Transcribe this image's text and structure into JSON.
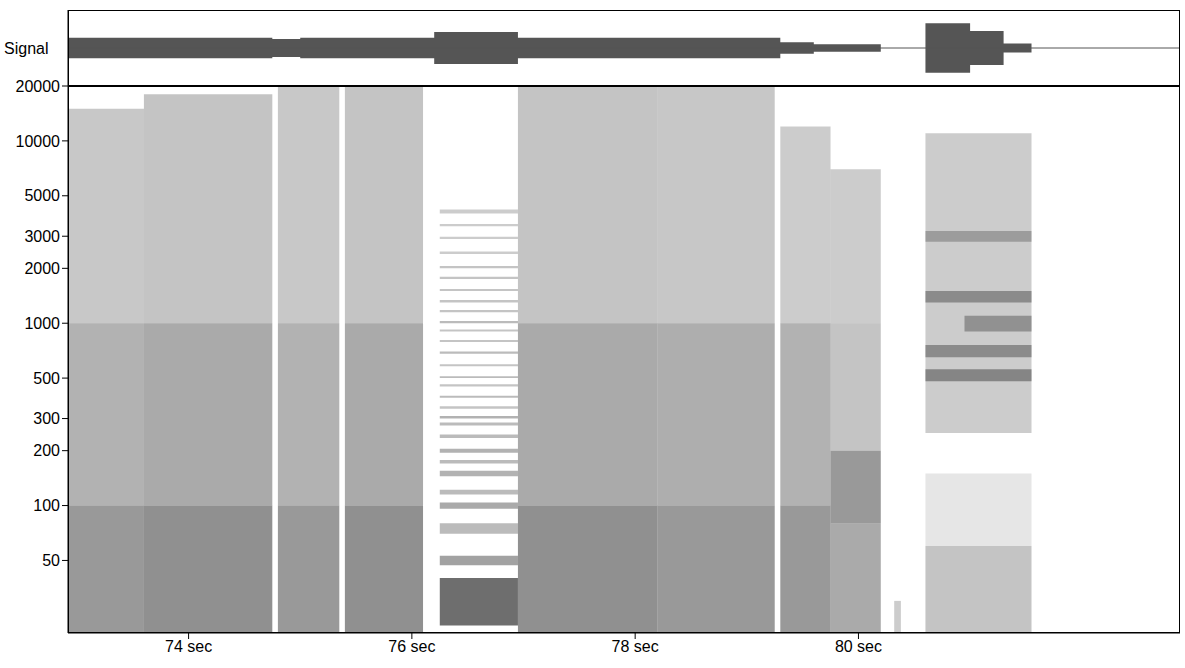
{
  "chart_data": {
    "type": "spectrogram",
    "signal": {
      "label": "Signal",
      "x": [
        72.92,
        74.75,
        75.0,
        76.2,
        76.95,
        79.3,
        79.6,
        80.2,
        80.6,
        81.0,
        81.3,
        81.55,
        82.88
      ],
      "amplitude": [
        0.27,
        0.24,
        0.27,
        0.42,
        0.27,
        0.15,
        0.1,
        0.0,
        0.65,
        0.45,
        0.12,
        0.0,
        0.0
      ],
      "ylim": [
        -1,
        1
      ],
      "color": "#555555"
    },
    "xlim": [
      72.92,
      82.88
    ],
    "xticks": [
      {
        "value": 74,
        "label": "74 sec"
      },
      {
        "value": 76,
        "label": "76 sec"
      },
      {
        "value": 78,
        "label": "78 sec"
      },
      {
        "value": 80,
        "label": "80 sec"
      }
    ],
    "ylim": [
      20,
      20000
    ],
    "yticks": [
      50,
      100,
      200,
      300,
      500,
      1000,
      2000,
      3000,
      5000,
      10000,
      20000
    ],
    "log": "y",
    "color": "#555555",
    "cells": [
      [
        72.92,
        73.6,
        20,
        100,
        0.6
      ],
      [
        72.92,
        73.6,
        100,
        1000,
        0.45
      ],
      [
        72.92,
        73.6,
        1000,
        15000,
        0.32
      ],
      [
        73.6,
        74.75,
        20,
        100,
        0.65
      ],
      [
        73.6,
        74.75,
        100,
        1000,
        0.5
      ],
      [
        73.6,
        74.75,
        1000,
        18000,
        0.35
      ],
      [
        74.8,
        75.35,
        20,
        100,
        0.6
      ],
      [
        74.8,
        75.35,
        100,
        1000,
        0.45
      ],
      [
        74.8,
        75.35,
        1000,
        20000,
        0.32
      ],
      [
        75.4,
        76.1,
        20,
        100,
        0.65
      ],
      [
        75.4,
        76.1,
        100,
        1000,
        0.5
      ],
      [
        75.4,
        76.1,
        1000,
        20000,
        0.35
      ],
      [
        76.25,
        76.95,
        22,
        40,
        0.85
      ],
      [
        76.25,
        76.95,
        47,
        53,
        0.55
      ],
      [
        76.25,
        76.95,
        70,
        80,
        0.4
      ],
      [
        76.25,
        76.95,
        96,
        104,
        0.5
      ],
      [
        76.25,
        76.95,
        115,
        122,
        0.4
      ],
      [
        76.25,
        76.95,
        145,
        155,
        0.45
      ],
      [
        76.25,
        76.95,
        170,
        178,
        0.4
      ],
      [
        76.25,
        76.95,
        195,
        205,
        0.45
      ],
      [
        76.25,
        76.95,
        235,
        245,
        0.4
      ],
      [
        76.25,
        76.95,
        275,
        285,
        0.4
      ],
      [
        76.25,
        76.95,
        300,
        310,
        0.45
      ],
      [
        76.25,
        76.95,
        340,
        350,
        0.35
      ],
      [
        76.25,
        76.95,
        390,
        400,
        0.4
      ],
      [
        76.25,
        76.95,
        450,
        462,
        0.35
      ],
      [
        76.25,
        76.95,
        500,
        512,
        0.4
      ],
      [
        76.25,
        76.95,
        580,
        595,
        0.35
      ],
      [
        76.25,
        76.95,
        680,
        700,
        0.4
      ],
      [
        76.25,
        76.95,
        790,
        810,
        0.35
      ],
      [
        76.25,
        76.95,
        900,
        925,
        0.35
      ],
      [
        76.25,
        76.95,
        1000,
        1030,
        0.4
      ],
      [
        76.25,
        76.95,
        1150,
        1180,
        0.35
      ],
      [
        76.25,
        76.95,
        1300,
        1340,
        0.35
      ],
      [
        76.25,
        76.95,
        1500,
        1540,
        0.35
      ],
      [
        76.25,
        76.95,
        1750,
        1800,
        0.35
      ],
      [
        76.25,
        76.95,
        2000,
        2060,
        0.35
      ],
      [
        76.25,
        76.95,
        2400,
        2470,
        0.3
      ],
      [
        76.25,
        76.95,
        2900,
        2980,
        0.3
      ],
      [
        76.25,
        76.95,
        3400,
        3500,
        0.3
      ],
      [
        76.25,
        76.95,
        4000,
        4200,
        0.3
      ],
      [
        76.95,
        78.2,
        20,
        100,
        0.65
      ],
      [
        76.95,
        78.2,
        100,
        1000,
        0.5
      ],
      [
        76.95,
        78.2,
        1000,
        20000,
        0.35
      ],
      [
        78.2,
        79.25,
        20,
        100,
        0.6
      ],
      [
        78.2,
        79.25,
        100,
        1000,
        0.48
      ],
      [
        78.2,
        79.25,
        1000,
        20000,
        0.33
      ],
      [
        79.3,
        79.75,
        20,
        100,
        0.6
      ],
      [
        79.3,
        79.75,
        100,
        1000,
        0.45
      ],
      [
        79.3,
        79.75,
        1000,
        12000,
        0.3
      ],
      [
        79.75,
        80.2,
        20,
        80,
        0.5
      ],
      [
        79.75,
        80.2,
        80,
        200,
        0.6
      ],
      [
        79.75,
        80.2,
        200,
        1000,
        0.35
      ],
      [
        79.75,
        80.2,
        1000,
        7000,
        0.3
      ],
      [
        80.32,
        80.38,
        20,
        30,
        0.3
      ],
      [
        80.6,
        81.55,
        20,
        60,
        0.35
      ],
      [
        80.6,
        81.55,
        60,
        150,
        0.15
      ],
      [
        80.6,
        81.55,
        250,
        11000,
        0.3
      ],
      [
        80.6,
        81.55,
        480,
        560,
        0.6
      ],
      [
        80.6,
        81.55,
        650,
        760,
        0.55
      ],
      [
        80.95,
        81.55,
        900,
        1100,
        0.5
      ],
      [
        80.6,
        81.55,
        1300,
        1500,
        0.55
      ],
      [
        80.6,
        81.55,
        2800,
        3200,
        0.4
      ]
    ]
  }
}
